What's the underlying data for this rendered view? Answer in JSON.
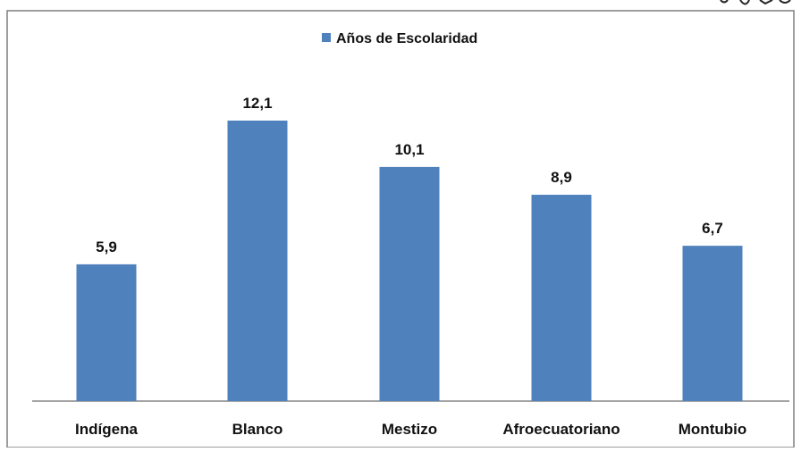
{
  "chart_data": {
    "type": "bar",
    "categories": [
      "Indígena",
      "Blanco",
      "Mestizo",
      "Afroecuatoriano",
      "Montubio"
    ],
    "series": [
      {
        "name": "Años de Escolaridad",
        "values": [
          5.9,
          12.1,
          10.1,
          8.9,
          6.7
        ],
        "value_labels": [
          "5,9",
          "12,1",
          "10,1",
          "8,9",
          "6,7"
        ],
        "color": "#4f81bd"
      }
    ],
    "legend_position": "top-center",
    "grid": false,
    "ylim": [
      0,
      15
    ]
  },
  "colors": {
    "bar": "#4f81bd",
    "axis": "#868686",
    "frame": "#7f7f7f"
  }
}
